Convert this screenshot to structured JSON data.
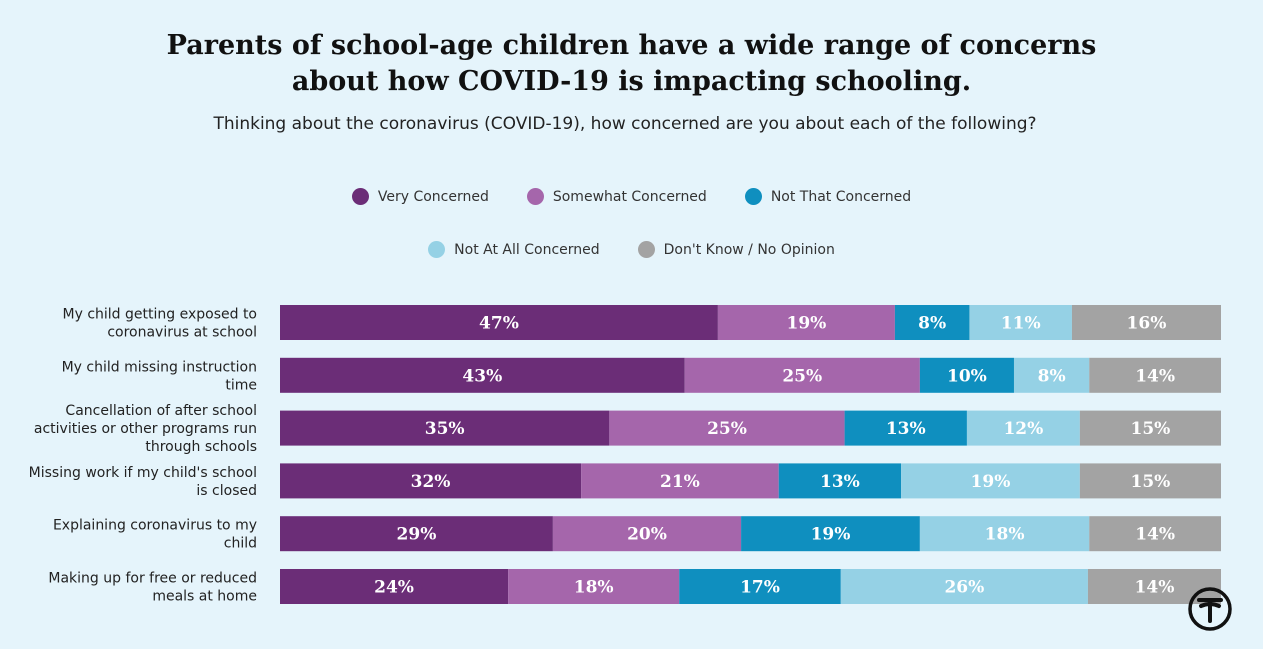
{
  "chart_data": {
    "type": "bar",
    "orientation": "horizontal",
    "stacked": true,
    "title_lines": [
      "Parents of school-age children have a wide range of concerns",
      "about how COVID-19 is impacting schooling."
    ],
    "subtitle": "Thinking about the coronavirus (COVID-19), how concerned are you about each of the following?",
    "legend_rows": [
      [
        "Very Concerned",
        "Somewhat Concerned",
        "Not That Concerned"
      ],
      [
        "Not At All Concerned",
        "Don't Know / No Opinion"
      ]
    ],
    "categories": [
      [
        "My child getting exposed to",
        "coronavirus at school"
      ],
      [
        "My child missing instruction",
        "time"
      ],
      [
        "Cancellation of after school",
        "activities or other programs run",
        "through schools"
      ],
      [
        "Missing work if my child's school",
        "is closed"
      ],
      [
        "Explaining coronavirus to my",
        "child"
      ],
      [
        "Making up for free or reduced",
        "meals at home"
      ]
    ],
    "series": [
      {
        "name": "Very Concerned",
        "color": "#6b2d77",
        "values": [
          47,
          43,
          35,
          32,
          29,
          24
        ]
      },
      {
        "name": "Somewhat Concerned",
        "color": "#a566ab",
        "values": [
          19,
          25,
          25,
          21,
          20,
          18
        ]
      },
      {
        "name": "Not That Concerned",
        "color": "#0f8fbf",
        "values": [
          8,
          10,
          13,
          13,
          19,
          17
        ]
      },
      {
        "name": "Not At All Concerned",
        "color": "#95d1e5",
        "values": [
          11,
          8,
          12,
          19,
          18,
          26
        ]
      },
      {
        "name": "Don't Know / No Opinion",
        "color": "#a3a3a3",
        "values": [
          16,
          14,
          15,
          15,
          14,
          14
        ]
      }
    ],
    "value_suffix": "%",
    "xlim": [
      0,
      100
    ]
  },
  "logo_icon": "napsi-logo-icon"
}
